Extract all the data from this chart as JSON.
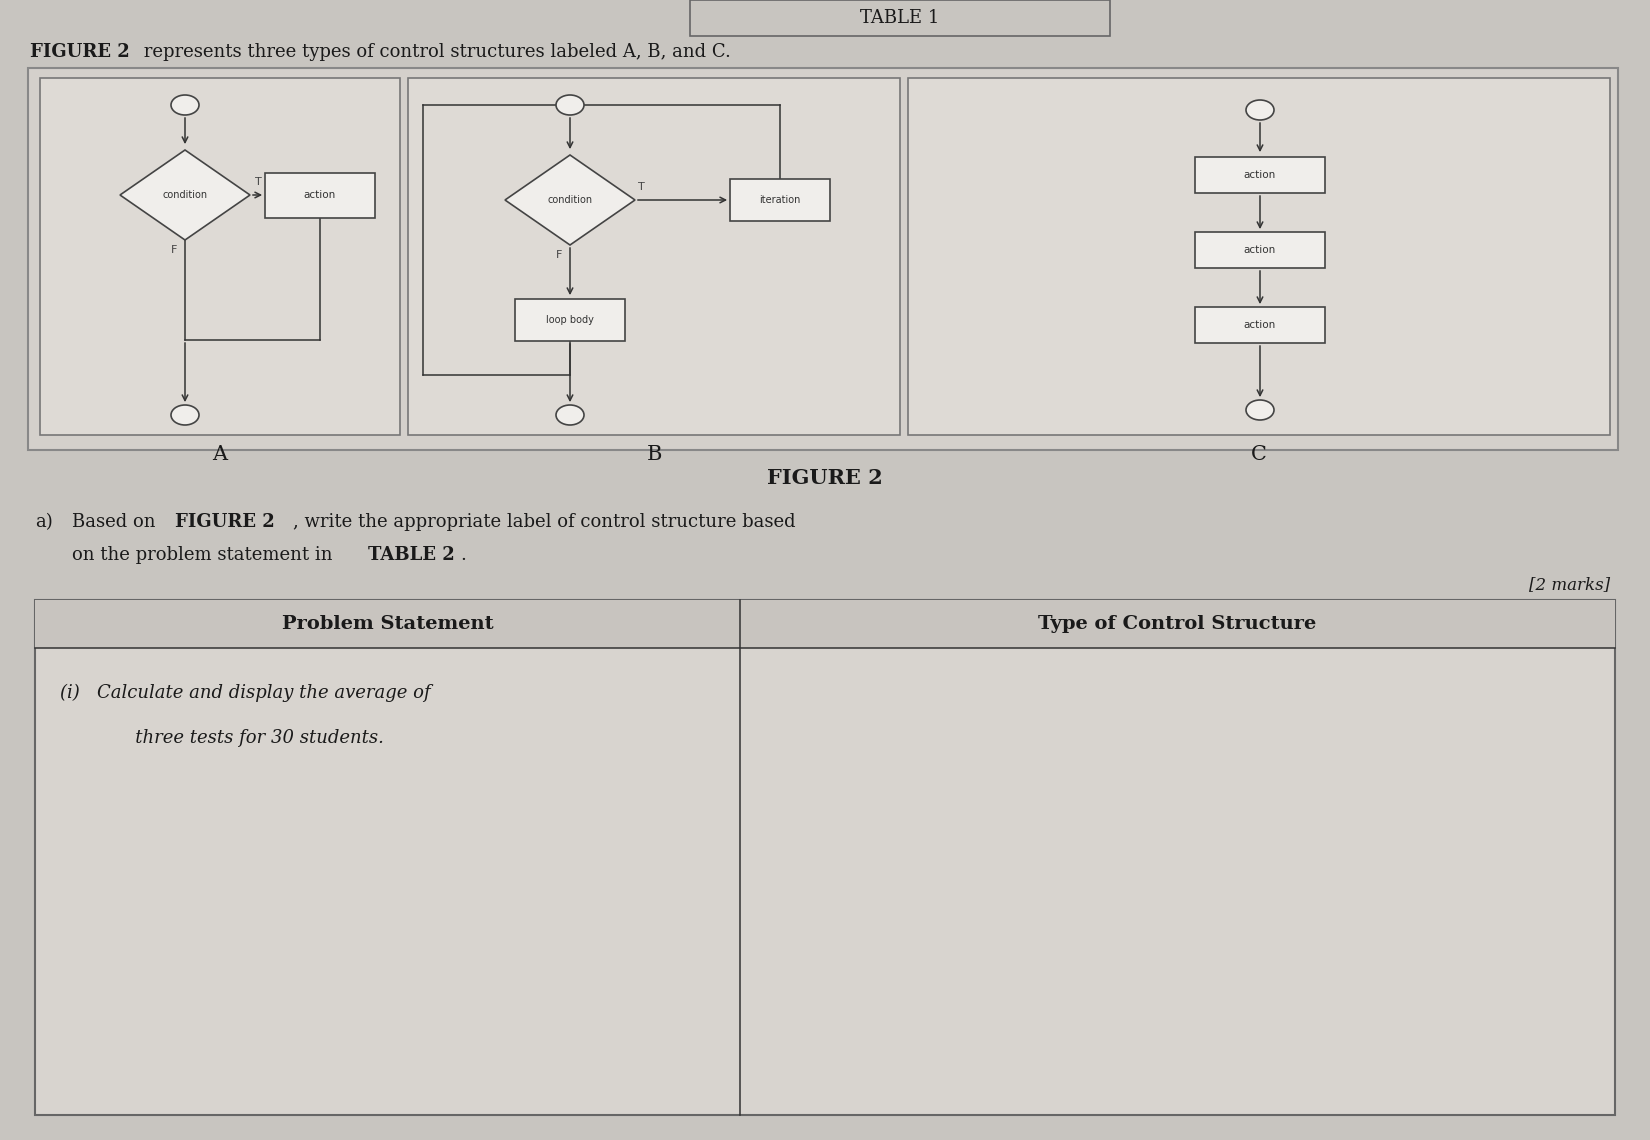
{
  "bg_color": "#c8c5c0",
  "title_top": "TABLE 1",
  "figure_label": "FIGURE 2",
  "figure_caption": "FIGURE 2",
  "question_line1_a": "a)",
  "question_line1_b": "Based on ",
  "question_line1_bold": "FIGURE 2",
  "question_line1_c": ", write the appropriate label of control structure based",
  "question_line2": "on the problem statement in ",
  "question_line2_bold": "TABLE 2",
  "question_line2_end": ".",
  "marks_text": "[2 marks]",
  "table_header_col1": "Problem Statement",
  "table_header_col2": "Type of Control Structure",
  "row1_text1": "(i)   Calculate and display the average of",
  "row1_text2": "       three tests for 30 students.",
  "label_A": "A",
  "label_B": "B",
  "label_C": "C",
  "text_dark": "#1a1a1a",
  "line_color": "#333333",
  "box_fc": "#f0eeeb",
  "diamond_text_A": "condition",
  "diamond_text_B": "condition",
  "act_text_A": "action",
  "loop_text_B": "loop body",
  "iter_text_B": "iteration",
  "act1_text_C": "action",
  "act2_text_C": "action",
  "act3_text_C": "action"
}
